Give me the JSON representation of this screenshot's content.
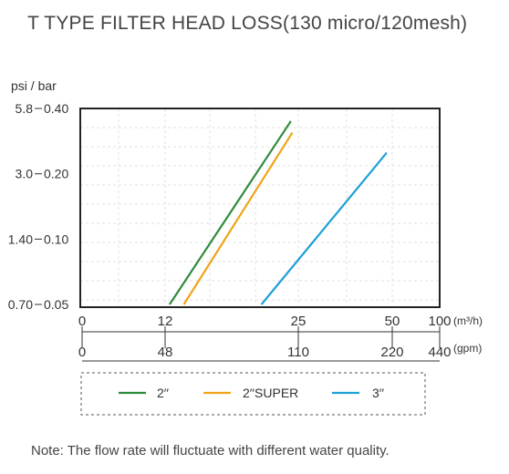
{
  "page": {
    "title": "T TYPE FILTER HEAD LOSS(130 micro/120mesh)",
    "note": "Note: The flow rate will fluctuate with different water quality."
  },
  "chart_data": {
    "type": "line",
    "title": "T TYPE FILTER HEAD LOSS(130 micro/120mesh)",
    "ylabel": "psi / bar",
    "y_scale": "log",
    "y_ticks": [
      {
        "psi": "5.8",
        "bar": "0.40",
        "value": 0.4
      },
      {
        "psi": "3.0",
        "bar": "0.20",
        "value": 0.2
      },
      {
        "psi": "1.40",
        "bar": "0.10",
        "value": 0.1
      },
      {
        "psi": "0.70",
        "bar": "0.05",
        "value": 0.05
      }
    ],
    "ylim": [
      0.05,
      0.4
    ],
    "x_scale": "log",
    "x_axis_m3h": {
      "unit": "(m³/h)",
      "ticks": [
        "0",
        "12",
        "25",
        "50",
        "100"
      ]
    },
    "x_axis_gpm": {
      "unit": "(gpm)",
      "ticks": [
        "0",
        "48",
        "110",
        "220",
        "440"
      ]
    },
    "grid": true,
    "legend_position": "bottom",
    "series": [
      {
        "name": "2′′",
        "color": "#2e8b3d",
        "x": [
          12.3,
          24.0
        ],
        "y": [
          0.05,
          0.35
        ]
      },
      {
        "name": "2′′SUPER",
        "color": "#f0a418",
        "x": [
          13.3,
          24.2
        ],
        "y": [
          0.05,
          0.31
        ]
      },
      {
        "name": "3′′",
        "color": "#1ea0d7",
        "x": [
          20.4,
          48.0
        ],
        "y": [
          0.05,
          0.25
        ]
      }
    ]
  }
}
